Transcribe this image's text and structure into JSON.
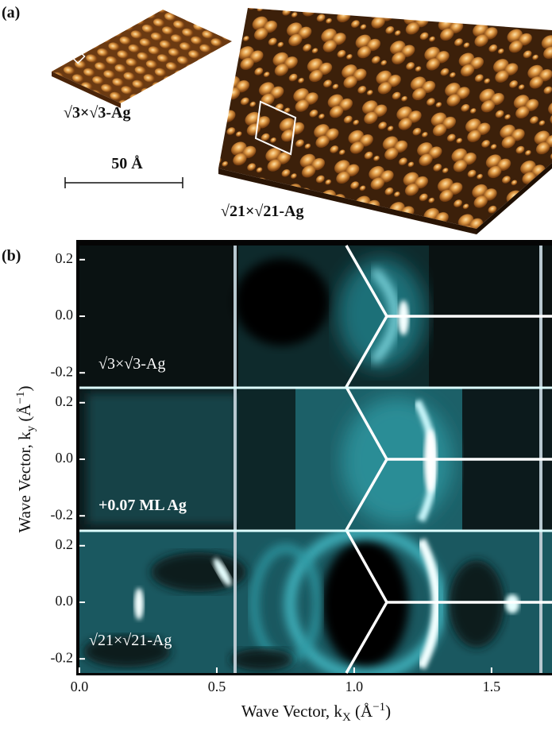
{
  "panel_a": {
    "label": "(a)",
    "small_image_label": "√3×√3-Ag",
    "scale_bar": "50 Å",
    "large_image_label": "√21×√21-Ag"
  },
  "panel_b": {
    "label": "(b)",
    "xlabel": [
      "Wave Vector, k",
      "X",
      " (Å",
      "−1",
      ")"
    ],
    "ylabel": [
      "Wave Vector, k",
      "y",
      " (Å",
      "−1",
      ")"
    ],
    "xlim": [
      0,
      1.72
    ],
    "xticks": [
      {
        "value": 0,
        "label": "0.0"
      },
      0.5,
      {
        "value": 1,
        "label": "1.0"
      },
      1.5
    ],
    "ylim": [
      -0.25,
      0.25
    ],
    "yticks": [
      0.2,
      {
        "value": 0,
        "label": "0.0"
      },
      -0.2
    ],
    "subpanels": [
      {
        "label": "√3×√3-Ag"
      },
      {
        "label": "+0.07 ML Ag"
      },
      {
        "label": "√21×√21-Ag"
      }
    ]
  }
}
